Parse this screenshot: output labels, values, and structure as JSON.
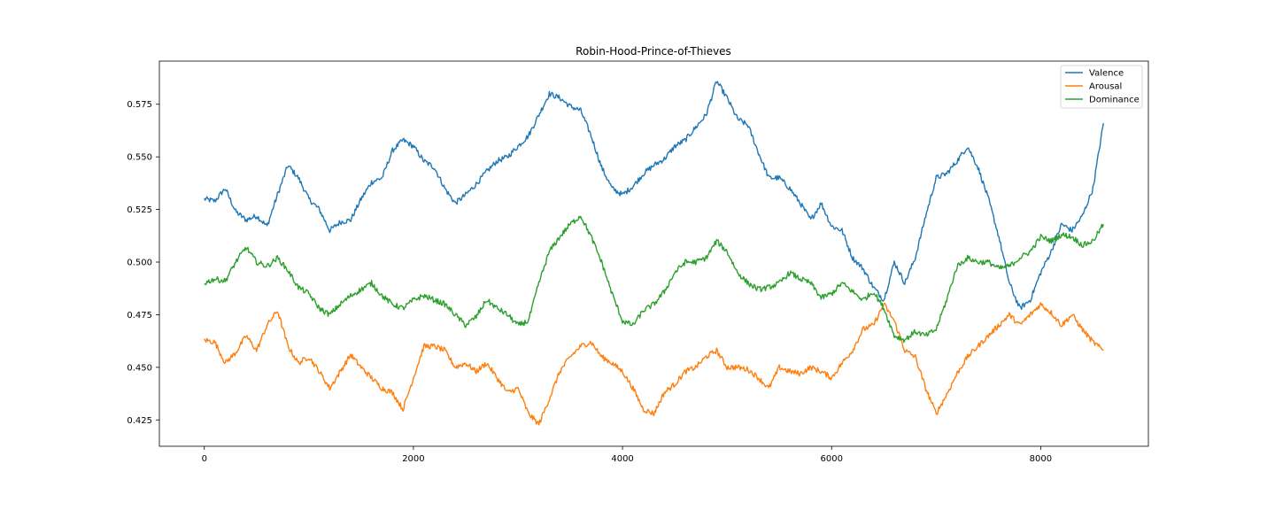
{
  "chart_data": {
    "type": "line",
    "title": "Robin-Hood-Prince-of-Thieves",
    "xlabel": "",
    "ylabel": "",
    "xlim": [
      -430,
      9030
    ],
    "ylim": [
      0.4125,
      0.5955
    ],
    "xticks": [
      0,
      2000,
      4000,
      6000,
      8000
    ],
    "xtick_labels": [
      "0",
      "2000",
      "4000",
      "6000",
      "8000"
    ],
    "yticks": [
      0.425,
      0.45,
      0.475,
      0.5,
      0.525,
      0.55,
      0.575
    ],
    "ytick_labels": [
      "0.425",
      "0.450",
      "0.475",
      "0.500",
      "0.525",
      "0.550",
      "0.575"
    ],
    "grid": false,
    "legend_position": "top-right",
    "series": [
      {
        "name": "Valence",
        "color": "#1f77b4",
        "x": [
          0,
          100,
          200,
          300,
          400,
          500,
          600,
          700,
          800,
          900,
          1000,
          1100,
          1200,
          1300,
          1400,
          1500,
          1600,
          1700,
          1800,
          1900,
          2000,
          2100,
          2200,
          2300,
          2400,
          2500,
          2600,
          2700,
          2800,
          2900,
          3000,
          3100,
          3200,
          3300,
          3400,
          3500,
          3600,
          3700,
          3800,
          3900,
          4000,
          4100,
          4200,
          4300,
          4400,
          4500,
          4600,
          4700,
          4800,
          4900,
          5000,
          5100,
          5200,
          5300,
          5400,
          5500,
          5600,
          5700,
          5800,
          5900,
          6000,
          6100,
          6200,
          6300,
          6400,
          6500,
          6600,
          6700,
          6800,
          6900,
          7000,
          7100,
          7200,
          7300,
          7400,
          7500,
          7600,
          7700,
          7800,
          7900,
          8000,
          8100,
          8200,
          8300,
          8400,
          8500,
          8600
        ],
        "values": [
          0.53,
          0.529,
          0.535,
          0.524,
          0.52,
          0.522,
          0.517,
          0.532,
          0.546,
          0.54,
          0.53,
          0.525,
          0.515,
          0.519,
          0.52,
          0.53,
          0.538,
          0.54,
          0.553,
          0.558,
          0.555,
          0.548,
          0.545,
          0.535,
          0.528,
          0.532,
          0.537,
          0.543,
          0.548,
          0.55,
          0.555,
          0.56,
          0.57,
          0.58,
          0.578,
          0.574,
          0.572,
          0.56,
          0.545,
          0.535,
          0.532,
          0.536,
          0.542,
          0.546,
          0.549,
          0.555,
          0.558,
          0.564,
          0.57,
          0.586,
          0.578,
          0.568,
          0.565,
          0.552,
          0.54,
          0.54,
          0.535,
          0.528,
          0.52,
          0.528,
          0.517,
          0.515,
          0.502,
          0.497,
          0.488,
          0.482,
          0.5,
          0.49,
          0.502,
          0.522,
          0.54,
          0.542,
          0.548,
          0.555,
          0.545,
          0.53,
          0.512,
          0.49,
          0.478,
          0.482,
          0.495,
          0.505,
          0.518,
          0.515,
          0.522,
          0.535,
          0.566
        ]
      },
      {
        "name": "Arousal",
        "color": "#ff7f0e",
        "x": [
          0,
          100,
          200,
          300,
          400,
          500,
          600,
          700,
          800,
          900,
          1000,
          1100,
          1200,
          1300,
          1400,
          1500,
          1600,
          1700,
          1800,
          1900,
          2000,
          2100,
          2200,
          2300,
          2400,
          2500,
          2600,
          2700,
          2800,
          2900,
          3000,
          3100,
          3200,
          3300,
          3400,
          3500,
          3600,
          3700,
          3800,
          3900,
          4000,
          4100,
          4200,
          4300,
          4400,
          4500,
          4600,
          4700,
          4800,
          4900,
          5000,
          5100,
          5200,
          5300,
          5400,
          5500,
          5600,
          5700,
          5800,
          5900,
          6000,
          6100,
          6200,
          6300,
          6400,
          6500,
          6600,
          6700,
          6800,
          6900,
          7000,
          7100,
          7200,
          7300,
          7400,
          7500,
          7600,
          7700,
          7800,
          7900,
          8000,
          8100,
          8200,
          8300,
          8400,
          8500,
          8600
        ],
        "values": [
          0.463,
          0.462,
          0.452,
          0.457,
          0.465,
          0.458,
          0.47,
          0.477,
          0.46,
          0.452,
          0.455,
          0.448,
          0.44,
          0.448,
          0.456,
          0.45,
          0.445,
          0.44,
          0.438,
          0.43,
          0.445,
          0.46,
          0.46,
          0.458,
          0.45,
          0.452,
          0.448,
          0.452,
          0.445,
          0.438,
          0.44,
          0.428,
          0.423,
          0.435,
          0.448,
          0.455,
          0.46,
          0.462,
          0.455,
          0.452,
          0.448,
          0.44,
          0.43,
          0.428,
          0.438,
          0.442,
          0.448,
          0.45,
          0.455,
          0.458,
          0.45,
          0.45,
          0.449,
          0.445,
          0.44,
          0.45,
          0.448,
          0.447,
          0.45,
          0.448,
          0.445,
          0.452,
          0.458,
          0.468,
          0.47,
          0.48,
          0.472,
          0.458,
          0.455,
          0.44,
          0.428,
          0.437,
          0.447,
          0.455,
          0.46,
          0.465,
          0.47,
          0.475,
          0.47,
          0.475,
          0.48,
          0.476,
          0.47,
          0.475,
          0.468,
          0.462,
          0.458
        ]
      },
      {
        "name": "Dominance",
        "color": "#2ca02c",
        "x": [
          0,
          100,
          200,
          300,
          400,
          500,
          600,
          700,
          800,
          900,
          1000,
          1100,
          1200,
          1300,
          1400,
          1500,
          1600,
          1700,
          1800,
          1900,
          2000,
          2100,
          2200,
          2300,
          2400,
          2500,
          2600,
          2700,
          2800,
          2900,
          3000,
          3100,
          3200,
          3300,
          3400,
          3500,
          3600,
          3700,
          3800,
          3900,
          4000,
          4100,
          4200,
          4300,
          4400,
          4500,
          4600,
          4700,
          4800,
          4900,
          5000,
          5100,
          5200,
          5300,
          5400,
          5500,
          5600,
          5700,
          5800,
          5900,
          6000,
          6100,
          6200,
          6300,
          6400,
          6500,
          6600,
          6700,
          6800,
          6900,
          7000,
          7100,
          7200,
          7300,
          7400,
          7500,
          7600,
          7700,
          7800,
          7900,
          8000,
          8100,
          8200,
          8300,
          8400,
          8500,
          8600
        ],
        "values": [
          0.49,
          0.492,
          0.491,
          0.5,
          0.507,
          0.5,
          0.498,
          0.502,
          0.496,
          0.488,
          0.485,
          0.478,
          0.475,
          0.48,
          0.484,
          0.487,
          0.49,
          0.484,
          0.48,
          0.478,
          0.482,
          0.484,
          0.482,
          0.48,
          0.475,
          0.47,
          0.474,
          0.482,
          0.478,
          0.475,
          0.47,
          0.472,
          0.49,
          0.505,
          0.512,
          0.518,
          0.522,
          0.512,
          0.5,
          0.485,
          0.472,
          0.47,
          0.477,
          0.48,
          0.486,
          0.495,
          0.5,
          0.5,
          0.502,
          0.51,
          0.505,
          0.495,
          0.49,
          0.487,
          0.488,
          0.49,
          0.495,
          0.492,
          0.49,
          0.483,
          0.485,
          0.49,
          0.486,
          0.482,
          0.486,
          0.478,
          0.465,
          0.463,
          0.467,
          0.465,
          0.468,
          0.482,
          0.498,
          0.502,
          0.5,
          0.5,
          0.497,
          0.498,
          0.502,
          0.505,
          0.512,
          0.51,
          0.513,
          0.512,
          0.508,
          0.51,
          0.518
        ]
      }
    ]
  }
}
